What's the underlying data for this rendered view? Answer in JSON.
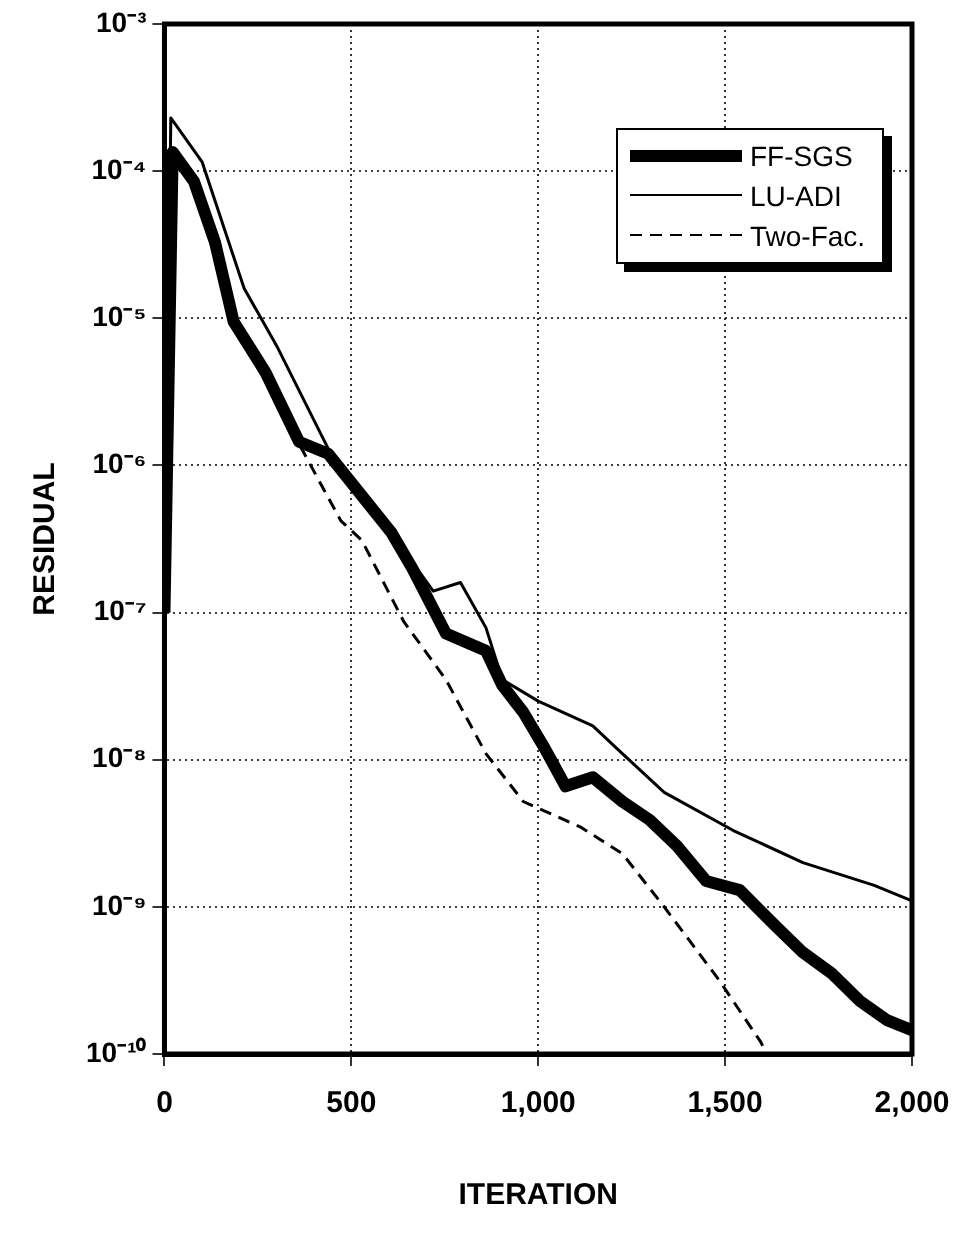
{
  "chart_data": {
    "type": "line",
    "xlabel": "ITERATION",
    "ylabel": "RESIDUAL",
    "log": "y",
    "grid": true,
    "legend": "top right",
    "marker": "none",
    "xlim": [
      0,
      2000
    ],
    "xticks": [
      0,
      500,
      {
        "value": 1000,
        "label": "1,000"
      },
      {
        "value": 1500,
        "label": "1,500"
      },
      {
        "value": 2000,
        "label": "2,000"
      }
    ],
    "ylim": [
      1e-10,
      0.001
    ],
    "yticks": [
      {
        "value": 1e-10,
        "label": "10⁻¹⁰"
      },
      {
        "value": 1e-09,
        "label": "10⁻⁹"
      },
      {
        "value": 1e-08,
        "label": "10⁻⁸"
      },
      {
        "value": 1e-07,
        "label": "10⁻⁷"
      },
      {
        "value": 1e-06,
        "label": "10⁻⁶"
      },
      {
        "value": 1e-05,
        "label": "10⁻⁵"
      },
      {
        "value": 0.0001,
        "label": "10⁻⁴"
      },
      {
        "value": 0.001,
        "label": "10⁻³"
      }
    ],
    "series": [
      {
        "name": "FF-SGS",
        "color": "#000000",
        "line_style": "solid",
        "x": [
          0,
          22,
          79,
          135,
          185,
          270,
          360,
          438,
          607,
          663,
          753,
          860,
          904,
          960,
          1017,
          1073,
          1146,
          1225,
          1298,
          1371,
          1449,
          1539,
          1635,
          1708,
          1787,
          1860,
          1933,
          2000
        ],
        "values": [
          1e-07,
          0.000135,
          8.5e-05,
          3.3e-05,
          9.5e-06,
          4.3e-06,
          1.45e-06,
          1.2e-06,
          3.5e-07,
          2e-07,
          7.2e-08,
          5.5e-08,
          3.2e-08,
          2.1e-08,
          1.2e-08,
          6.6e-09,
          7.6e-09,
          5.2e-09,
          3.9e-09,
          2.6e-09,
          1.5e-09,
          1.3e-09,
          7.4e-10,
          4.9e-10,
          3.5e-10,
          2.3e-10,
          1.7e-10,
          1.45e-10
        ]
      },
      {
        "name": "LU-ADI",
        "color": "#000000",
        "line_style": "solid",
        "x": [
          0,
          17,
          101,
          213,
          303,
          438,
          584,
          719,
          792,
          860,
          904,
          1000,
          1146,
          1225,
          1337,
          1522,
          1708,
          1899,
          2000
        ],
        "values": [
          1e-07,
          0.00023,
          0.000115,
          1.6e-05,
          6.3e-06,
          1.3e-06,
          4.2e-07,
          1.4e-07,
          1.6e-07,
          7.9e-08,
          3.5e-08,
          2.5e-08,
          1.7e-08,
          1.1e-08,
          6e-09,
          3.3e-09,
          2e-09,
          1.4e-09,
          1.1e-09
        ]
      },
      {
        "name": "Two-Fac.",
        "color": "#000000",
        "line_style": "dashed",
        "x": [
          0,
          22,
          79,
          135,
          185,
          270,
          360,
          472,
          528,
          640,
          753,
          860,
          960,
          1112,
          1225,
          1337,
          1483,
          1596,
          1610
        ],
        "values": [
          1e-07,
          0.00013,
          8.3e-05,
          3.2e-05,
          9.3e-06,
          4.2e-06,
          1.4e-06,
          4.2e-07,
          3.1e-07,
          8.7e-08,
          3.5e-08,
          1.1e-08,
          5.2e-09,
          3.5e-09,
          2.3e-09,
          1e-09,
          3.2e-10,
          1.2e-10,
          1e-10
        ]
      }
    ]
  }
}
